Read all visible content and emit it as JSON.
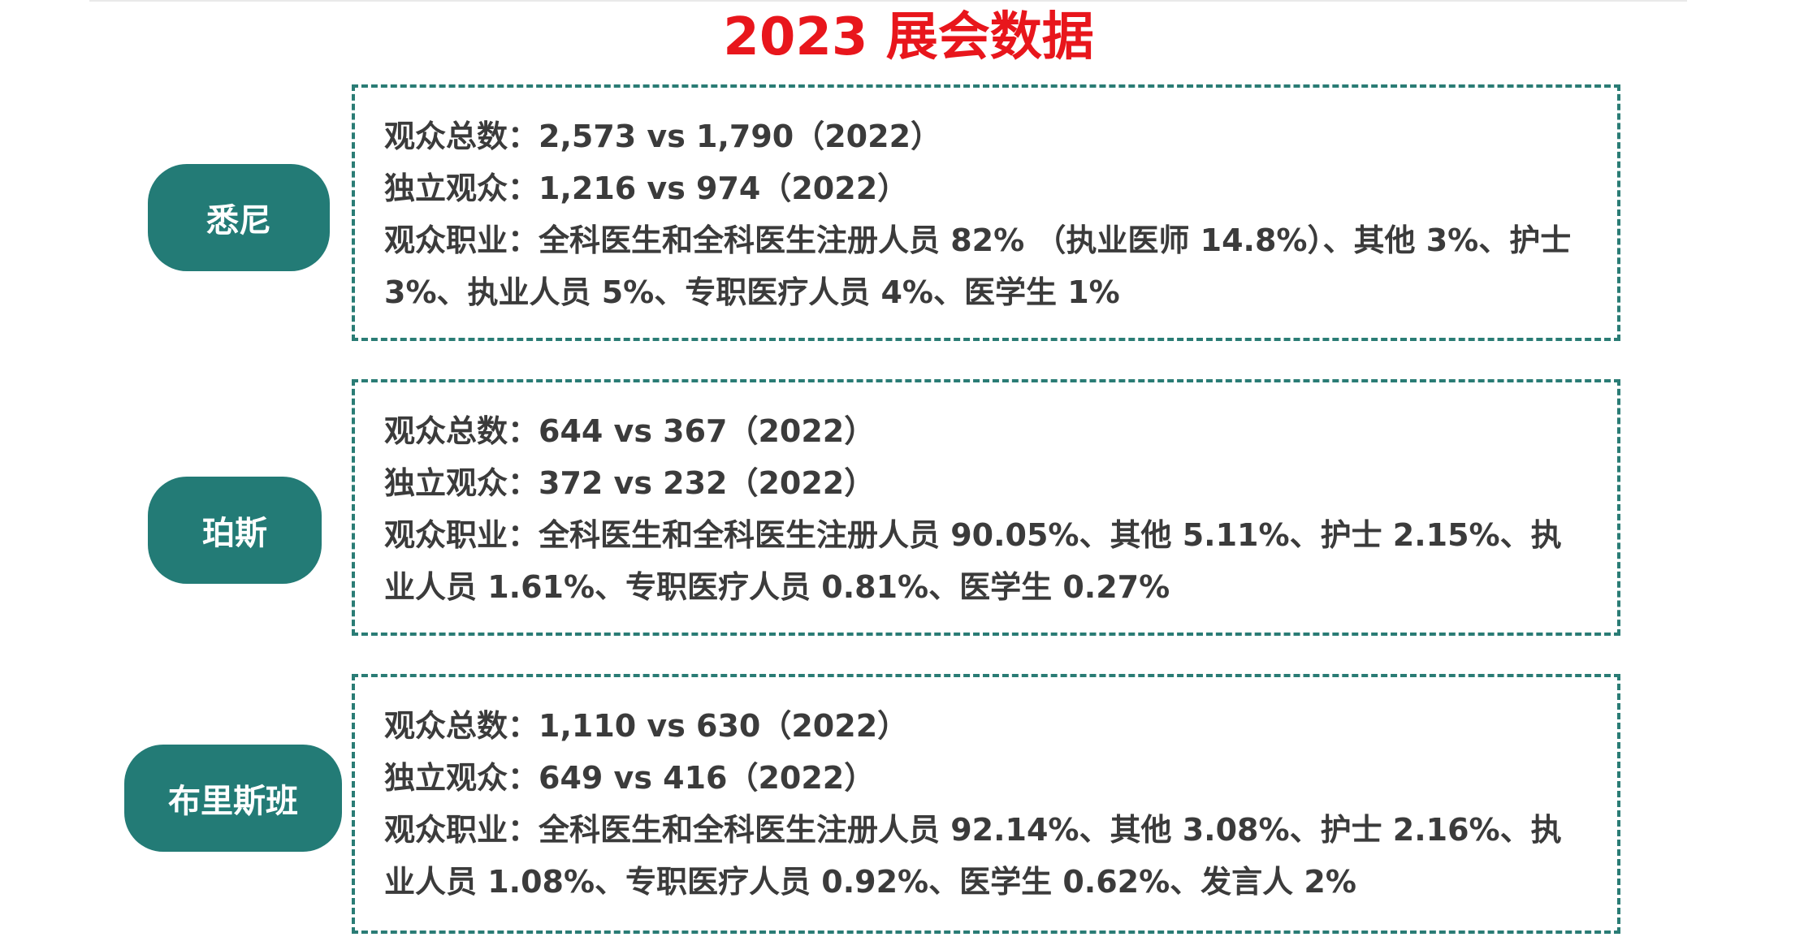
{
  "title": "2023 展会数据",
  "cities": [
    {
      "name": "悉尼",
      "total": "观众总数：2,573 vs 1,790（2022）",
      "unique": "独立观众：1,216 vs 974（2022）",
      "occupation": "观众职业：全科医生和全科医生注册人员 82% （执业医师 14.8%）、其他 3%、护士 3%、执业人员 5%、专职医疗人员 4%、医学生 1%"
    },
    {
      "name": "珀斯",
      "total": "观众总数：644 vs 367（2022）",
      "unique": "独立观众：372 vs 232（2022）",
      "occupation": "观众职业：全科医生和全科医生注册人员 90.05%、其他 5.11%、护士 2.15%、执业人员 1.61%、专职医疗人员 0.81%、医学生 0.27%"
    },
    {
      "name": "布里斯班",
      "total": "观众总数：1,110 vs 630（2022）",
      "unique": "独立观众：649 vs 416（2022）",
      "occupation": "观众职业：全科医生和全科医生注册人员 92.14%、其他 3.08%、护士 2.16%、执业人员 1.08%、专职医疗人员 0.92%、医学生 0.62%、发言人 2%"
    }
  ],
  "colors": {
    "title": "#e8161c",
    "label_bg": "#237b76",
    "border": "#2a7c75",
    "text": "#3b3b3b"
  }
}
